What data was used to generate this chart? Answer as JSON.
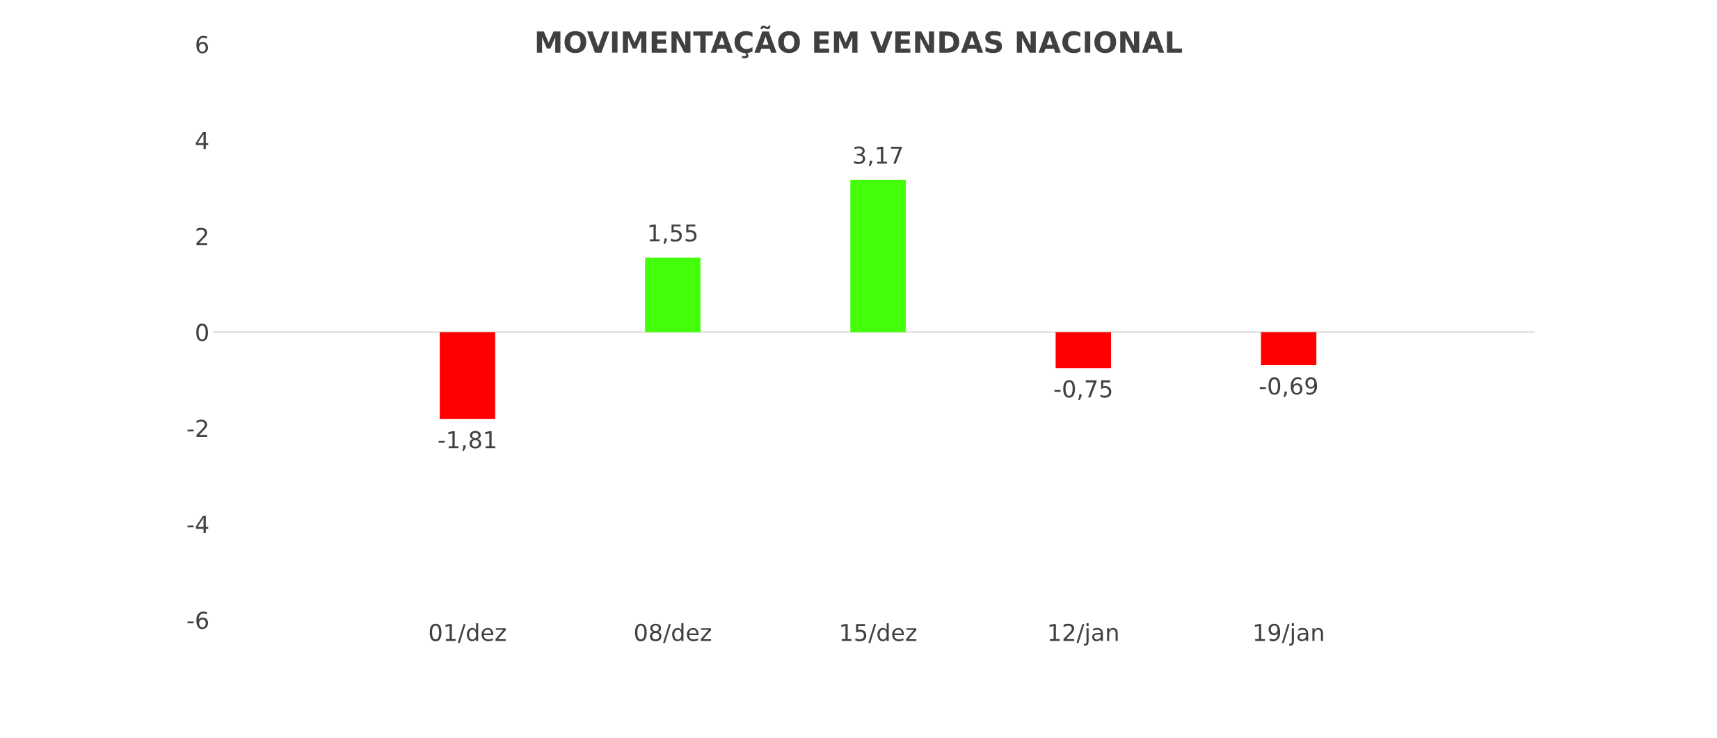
{
  "chart_data": {
    "type": "bar",
    "title": "MOVIMENTAÇÃO EM VENDAS NACIONAL",
    "categories": [
      "01/dez",
      "08/dez",
      "15/dez",
      "12/jan",
      "19/jan"
    ],
    "values": [
      -1.81,
      1.55,
      3.17,
      -0.75,
      -0.69
    ],
    "value_labels": [
      "-1,81",
      "1,55",
      "3,17",
      "-0,75",
      "-0,69"
    ],
    "colors": [
      "#ff0000",
      "#44ff0a",
      "#44ff0a",
      "#ff0000",
      "#ff0000"
    ],
    "ylim": [
      -6,
      6
    ],
    "yticks": [
      -6,
      -4,
      -2,
      0,
      2,
      4,
      6
    ],
    "ref_lines": [
      {
        "axis": "y",
        "value": 0,
        "color": "#d9d9d9"
      }
    ]
  }
}
